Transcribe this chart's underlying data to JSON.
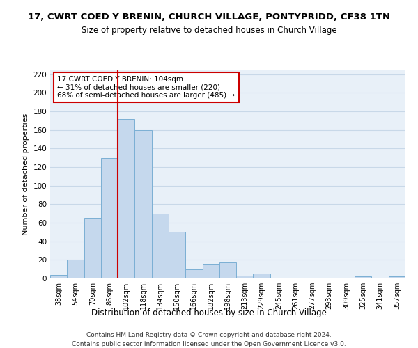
{
  "title": "17, CWRT COED Y BRENIN, CHURCH VILLAGE, PONTYPRIDD, CF38 1TN",
  "subtitle": "Size of property relative to detached houses in Church Village",
  "xlabel": "Distribution of detached houses by size in Church Village",
  "ylabel": "Number of detached properties",
  "bar_labels": [
    "38sqm",
    "54sqm",
    "70sqm",
    "86sqm",
    "102sqm",
    "118sqm",
    "134sqm",
    "150sqm",
    "166sqm",
    "182sqm",
    "198sqm",
    "213sqm",
    "229sqm",
    "245sqm",
    "261sqm",
    "277sqm",
    "293sqm",
    "309sqm",
    "325sqm",
    "341sqm",
    "357sqm"
  ],
  "bar_heights": [
    4,
    20,
    65,
    130,
    172,
    160,
    70,
    50,
    10,
    15,
    17,
    3,
    5,
    0,
    1,
    0,
    0,
    0,
    2,
    0,
    2
  ],
  "bar_color": "#c5d8ed",
  "bar_edge_color": "#7bafd4",
  "ylim": [
    0,
    225
  ],
  "yticks": [
    0,
    20,
    40,
    60,
    80,
    100,
    120,
    140,
    160,
    180,
    200,
    220
  ],
  "vline_x_index": 4,
  "vline_color": "#cc0000",
  "annotation_line1": "17 CWRT COED Y BRENIN: 104sqm",
  "annotation_line2": "← 31% of detached houses are smaller (220)",
  "annotation_line3": "68% of semi-detached houses are larger (485) →",
  "annotation_box_color": "#ffffff",
  "annotation_box_edge": "#cc0000",
  "footer_line1": "Contains HM Land Registry data © Crown copyright and database right 2024.",
  "footer_line2": "Contains public sector information licensed under the Open Government Licence v3.0.",
  "plot_bg_color": "#e8f0f8",
  "background_color": "#ffffff",
  "grid_color": "#c8d8e8"
}
